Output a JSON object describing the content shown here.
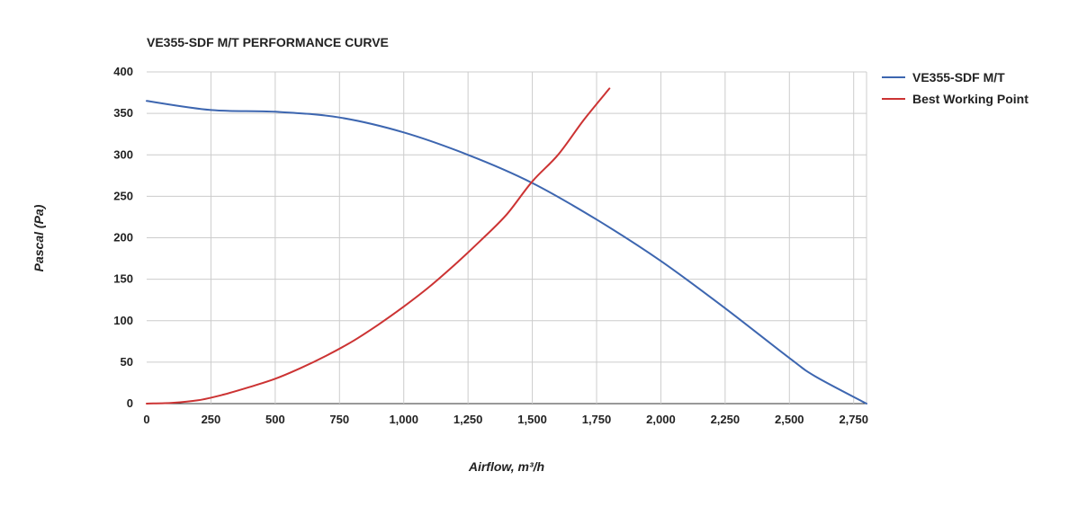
{
  "chart_data": {
    "type": "line",
    "title": "VE355-SDF M/T PERFORMANCE CURVE",
    "xlabel": "Airflow, m³/h",
    "ylabel": "Pascal (Pa)",
    "xlim": [
      0,
      2800
    ],
    "ylim": [
      0,
      400
    ],
    "xticks": [
      0,
      250,
      500,
      750,
      1000,
      1250,
      1500,
      1750,
      2000,
      2250,
      2500,
      2750
    ],
    "xtick_labels": [
      "0",
      "250",
      "500",
      "750",
      "1,000",
      "1,250",
      "1,500",
      "1,750",
      "2,000",
      "2,250",
      "2,500",
      "2,750"
    ],
    "yticks": [
      0,
      50,
      100,
      150,
      200,
      250,
      300,
      350,
      400
    ],
    "ytick_labels": [
      "0",
      "50",
      "100",
      "150",
      "200",
      "250",
      "300",
      "350",
      "400"
    ],
    "grid": true,
    "legend_position": "right",
    "series": [
      {
        "name": "VE355-SDF M/T",
        "color": "#3d66b0",
        "x": [
          0,
          250,
          500,
          750,
          1000,
          1250,
          1500,
          1750,
          2000,
          2250,
          2500,
          2600,
          2800
        ],
        "y": [
          365,
          354,
          352,
          345,
          327,
          300,
          266,
          222,
          172,
          115,
          55,
          33,
          0
        ]
      },
      {
        "name": "Best Working Point",
        "color": "#cc3333",
        "x": [
          0,
          100,
          200,
          300,
          400,
          500,
          600,
          700,
          800,
          900,
          1000,
          1100,
          1200,
          1300,
          1400,
          1500,
          1600,
          1700,
          1800
        ],
        "y": [
          0,
          1,
          4,
          11,
          20,
          30,
          43,
          58,
          75,
          95,
          117,
          141,
          168,
          197,
          228,
          268,
          300,
          342,
          380
        ]
      }
    ]
  }
}
